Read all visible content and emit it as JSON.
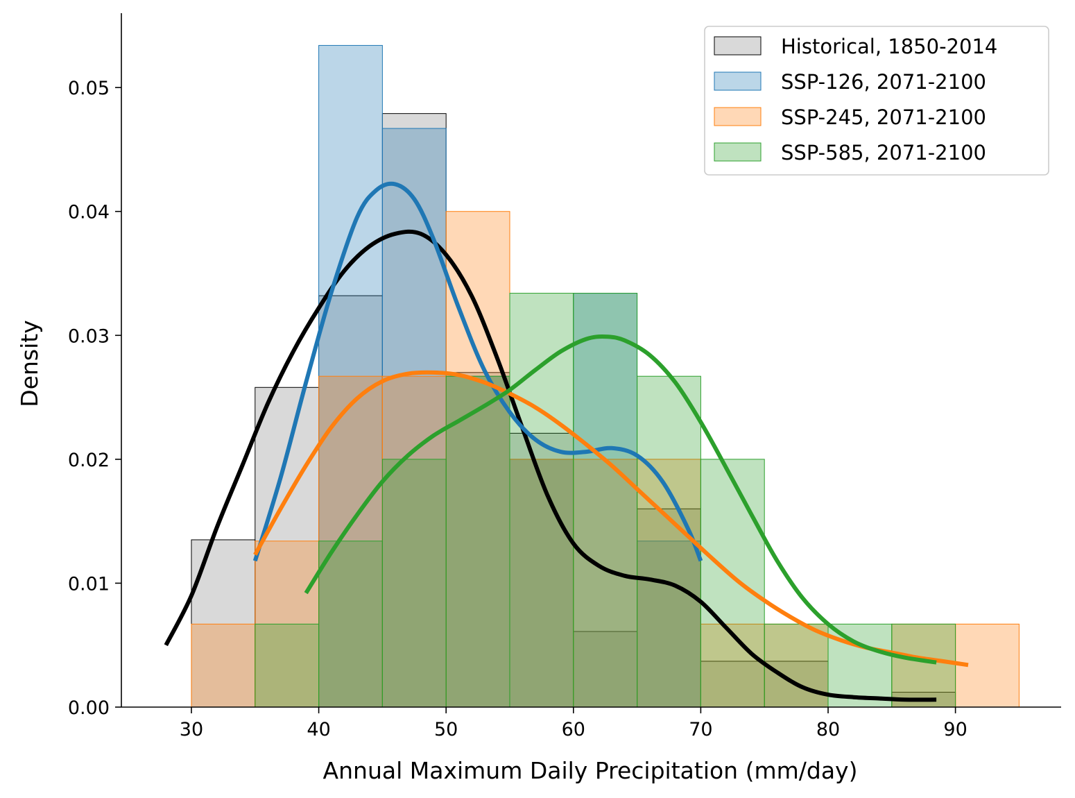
{
  "chart_data": {
    "type": "histogram",
    "title": "",
    "xlabel": "Annual Maximum Daily Precipitation (mm/day)",
    "ylabel": "Density",
    "xlim": [
      24.5,
      98.3
    ],
    "ylim": [
      0,
      0.056
    ],
    "xticks": [
      30,
      40,
      50,
      60,
      70,
      80,
      90
    ],
    "xtick_labels": [
      "30",
      "40",
      "50",
      "60",
      "70",
      "80",
      "90"
    ],
    "yticks": [
      0,
      0.01,
      0.02,
      0.03,
      0.04,
      0.05
    ],
    "ytick_labels": [
      "0.00",
      "0.01",
      "0.02",
      "0.03",
      "0.04",
      "0.05"
    ],
    "grid": false,
    "legend_position": "top-right",
    "series": [
      {
        "name": "Historical, 1850-2014",
        "color": "#000000",
        "fill": "#808080",
        "bins": [
          {
            "x0": 30,
            "x1": 35,
            "density": 0.0135
          },
          {
            "x0": 35,
            "x1": 40,
            "density": 0.0258
          },
          {
            "x0": 40,
            "x1": 45,
            "density": 0.0332
          },
          {
            "x0": 45,
            "x1": 50,
            "density": 0.0479
          },
          {
            "x0": 50,
            "x1": 55,
            "density": 0.027
          },
          {
            "x0": 55,
            "x1": 60,
            "density": 0.0221
          },
          {
            "x0": 60,
            "x1": 65,
            "density": 0.0061
          },
          {
            "x0": 65,
            "x1": 70,
            "density": 0.016
          },
          {
            "x0": 70,
            "x1": 75,
            "density": 0.0037
          },
          {
            "x0": 75,
            "x1": 80,
            "density": 0.0037
          },
          {
            "x0": 80,
            "x1": 85,
            "density": 0.0
          },
          {
            "x0": 85,
            "x1": 90,
            "density": 0.0012
          }
        ],
        "kde": [
          [
            28,
            0.005
          ],
          [
            30,
            0.009
          ],
          [
            32,
            0.0145
          ],
          [
            34,
            0.0195
          ],
          [
            36,
            0.0245
          ],
          [
            38,
            0.0287
          ],
          [
            40,
            0.0322
          ],
          [
            42,
            0.0352
          ],
          [
            44,
            0.0372
          ],
          [
            46,
            0.0382
          ],
          [
            48,
            0.0382
          ],
          [
            50,
            0.0365
          ],
          [
            52,
            0.0332
          ],
          [
            54,
            0.0282
          ],
          [
            56,
            0.0225
          ],
          [
            58,
            0.017
          ],
          [
            60,
            0.0132
          ],
          [
            62,
            0.0114
          ],
          [
            64,
            0.0106
          ],
          [
            66,
            0.0103
          ],
          [
            68,
            0.0098
          ],
          [
            70,
            0.0085
          ],
          [
            72,
            0.0064
          ],
          [
            74,
            0.0043
          ],
          [
            76,
            0.0028
          ],
          [
            78,
            0.0016
          ],
          [
            80,
            0.001
          ],
          [
            82,
            0.0008
          ],
          [
            84,
            0.0007
          ],
          [
            86,
            0.0006
          ],
          [
            88.5,
            0.0006
          ]
        ]
      },
      {
        "name": "SSP-126, 2071-2100",
        "color": "#1f77b4",
        "fill": "#1f77b4",
        "bins": [
          {
            "x0": 40,
            "x1": 45,
            "density": 0.0534
          },
          {
            "x0": 45,
            "x1": 50,
            "density": 0.0467
          },
          {
            "x0": 50,
            "x1": 55,
            "density": 0.0267
          },
          {
            "x0": 55,
            "x1": 60,
            "density": 0.02
          },
          {
            "x0": 60,
            "x1": 65,
            "density": 0.0334
          },
          {
            "x0": 65,
            "x1": 70,
            "density": 0.0134
          }
        ],
        "kde": [
          [
            35,
            0.0118
          ],
          [
            37,
            0.0185
          ],
          [
            39,
            0.0262
          ],
          [
            41,
            0.0335
          ],
          [
            43,
            0.0395
          ],
          [
            44.5,
            0.0417
          ],
          [
            46,
            0.0422
          ],
          [
            47.5,
            0.041
          ],
          [
            49,
            0.0378
          ],
          [
            51,
            0.0322
          ],
          [
            53,
            0.0272
          ],
          [
            55,
            0.0238
          ],
          [
            57,
            0.0216
          ],
          [
            59,
            0.0206
          ],
          [
            61,
            0.0206
          ],
          [
            63,
            0.0209
          ],
          [
            65,
            0.0203
          ],
          [
            67,
            0.0182
          ],
          [
            69,
            0.0144
          ],
          [
            70,
            0.0118
          ]
        ]
      },
      {
        "name": "SSP-245, 2071-2100",
        "color": "#ff7f0e",
        "fill": "#ff7f0e",
        "bins": [
          {
            "x0": 30,
            "x1": 35,
            "density": 0.0067
          },
          {
            "x0": 35,
            "x1": 40,
            "density": 0.0134
          },
          {
            "x0": 40,
            "x1": 45,
            "density": 0.0267
          },
          {
            "x0": 45,
            "x1": 50,
            "density": 0.0267
          },
          {
            "x0": 50,
            "x1": 55,
            "density": 0.04
          },
          {
            "x0": 55,
            "x1": 60,
            "density": 0.02
          },
          {
            "x0": 60,
            "x1": 65,
            "density": 0.02
          },
          {
            "x0": 65,
            "x1": 70,
            "density": 0.02
          },
          {
            "x0": 70,
            "x1": 75,
            "density": 0.0067
          },
          {
            "x0": 75,
            "x1": 80,
            "density": 0.0067
          },
          {
            "x0": 80,
            "x1": 85,
            "density": 0.0
          },
          {
            "x0": 85,
            "x1": 90,
            "density": 0.0067
          },
          {
            "x0": 90,
            "x1": 95,
            "density": 0.0067
          }
        ],
        "kde": [
          [
            35,
            0.0123
          ],
          [
            37,
            0.016
          ],
          [
            39,
            0.0195
          ],
          [
            41,
            0.0226
          ],
          [
            43,
            0.0249
          ],
          [
            45,
            0.0263
          ],
          [
            47,
            0.0269
          ],
          [
            49,
            0.027
          ],
          [
            51,
            0.0268
          ],
          [
            53,
            0.0262
          ],
          [
            55,
            0.0253
          ],
          [
            57,
            0.0242
          ],
          [
            59,
            0.0228
          ],
          [
            61,
            0.0212
          ],
          [
            63,
            0.0195
          ],
          [
            65,
            0.0176
          ],
          [
            67,
            0.0157
          ],
          [
            69,
            0.0138
          ],
          [
            71,
            0.0119
          ],
          [
            73,
            0.0101
          ],
          [
            75,
            0.0086
          ],
          [
            77,
            0.0073
          ],
          [
            79,
            0.0062
          ],
          [
            81,
            0.0054
          ],
          [
            83,
            0.0048
          ],
          [
            85,
            0.0044
          ],
          [
            87,
            0.004
          ],
          [
            89,
            0.0037
          ],
          [
            91,
            0.0034
          ]
        ]
      },
      {
        "name": "SSP-585, 2071-2100",
        "color": "#2ca02c",
        "fill": "#2ca02c",
        "bins": [
          {
            "x0": 35,
            "x1": 40,
            "density": 0.0067
          },
          {
            "x0": 40,
            "x1": 45,
            "density": 0.0134
          },
          {
            "x0": 45,
            "x1": 50,
            "density": 0.02
          },
          {
            "x0": 50,
            "x1": 55,
            "density": 0.0267
          },
          {
            "x0": 55,
            "x1": 60,
            "density": 0.0334
          },
          {
            "x0": 60,
            "x1": 65,
            "density": 0.0334
          },
          {
            "x0": 65,
            "x1": 70,
            "density": 0.0267
          },
          {
            "x0": 70,
            "x1": 75,
            "density": 0.02
          },
          {
            "x0": 75,
            "x1": 80,
            "density": 0.0067
          },
          {
            "x0": 80,
            "x1": 85,
            "density": 0.0067
          },
          {
            "x0": 85,
            "x1": 90,
            "density": 0.0067
          }
        ],
        "kde": [
          [
            39,
            0.0092
          ],
          [
            41,
            0.0125
          ],
          [
            43,
            0.0155
          ],
          [
            45,
            0.0182
          ],
          [
            47,
            0.0203
          ],
          [
            49,
            0.0219
          ],
          [
            51,
            0.0231
          ],
          [
            53,
            0.0243
          ],
          [
            55,
            0.0256
          ],
          [
            57,
            0.0272
          ],
          [
            59,
            0.0287
          ],
          [
            61,
            0.0297
          ],
          [
            62.5,
            0.0299
          ],
          [
            64,
            0.0296
          ],
          [
            66,
            0.0284
          ],
          [
            68,
            0.0262
          ],
          [
            70,
            0.023
          ],
          [
            72,
            0.0193
          ],
          [
            74,
            0.0155
          ],
          [
            76,
            0.0118
          ],
          [
            78,
            0.0088
          ],
          [
            80,
            0.0067
          ],
          [
            82,
            0.0053
          ],
          [
            84,
            0.0045
          ],
          [
            86,
            0.004
          ],
          [
            88.5,
            0.0036
          ]
        ]
      }
    ]
  }
}
